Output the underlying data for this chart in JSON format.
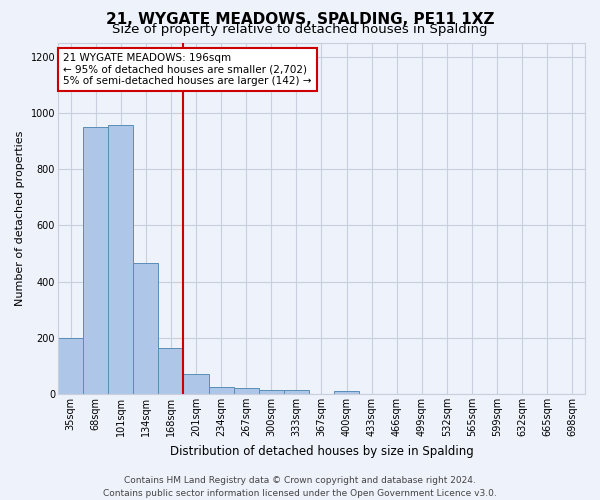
{
  "title": "21, WYGATE MEADOWS, SPALDING, PE11 1XZ",
  "subtitle": "Size of property relative to detached houses in Spalding",
  "xlabel": "Distribution of detached houses by size in Spalding",
  "ylabel": "Number of detached properties",
  "categories": [
    "35sqm",
    "68sqm",
    "101sqm",
    "134sqm",
    "168sqm",
    "201sqm",
    "234sqm",
    "267sqm",
    "300sqm",
    "333sqm",
    "367sqm",
    "400sqm",
    "433sqm",
    "466sqm",
    "499sqm",
    "532sqm",
    "565sqm",
    "599sqm",
    "632sqm",
    "665sqm",
    "698sqm"
  ],
  "values": [
    200,
    950,
    955,
    465,
    165,
    70,
    25,
    20,
    15,
    13,
    0,
    12,
    0,
    0,
    0,
    0,
    0,
    0,
    0,
    0,
    0
  ],
  "bar_color": "#aec6e8",
  "bar_edge_color": "#5b8db8",
  "red_line_index": 5,
  "annotation_line1": "21 WYGATE MEADOWS: 196sqm",
  "annotation_line2": "← 95% of detached houses are smaller (2,702)",
  "annotation_line3": "5% of semi-detached houses are larger (142) →",
  "annotation_box_color": "#ffffff",
  "annotation_box_edge_color": "#cc0000",
  "ylim": [
    0,
    1250
  ],
  "yticks": [
    0,
    200,
    400,
    600,
    800,
    1000,
    1200
  ],
  "footer_line1": "Contains HM Land Registry data © Crown copyright and database right 2024.",
  "footer_line2": "Contains public sector information licensed under the Open Government Licence v3.0.",
  "bg_color": "#eef2fa",
  "grid_color": "#c8d0de",
  "title_fontsize": 11,
  "subtitle_fontsize": 9.5,
  "ylabel_fontsize": 8,
  "xlabel_fontsize": 8.5,
  "tick_fontsize": 7,
  "annotation_fontsize": 7.5,
  "footer_fontsize": 6.5
}
